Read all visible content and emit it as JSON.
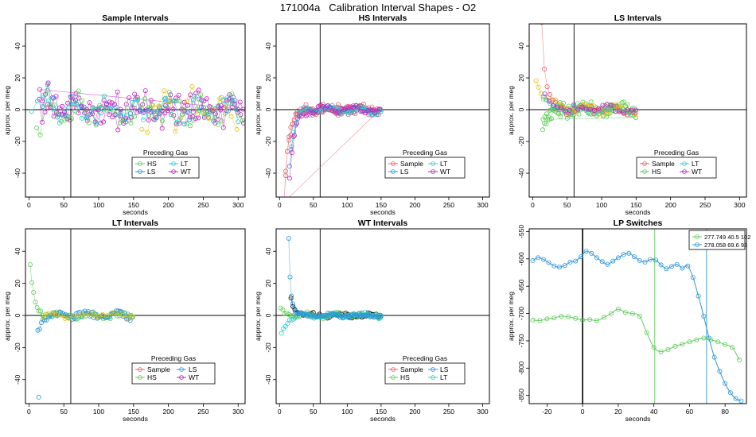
{
  "figure_title": "171004a   Calibration Interval Shapes - O2",
  "colors": {
    "Sample": "#e8606a",
    "HS": "#5fcc5a",
    "LS": "#2f96d8",
    "LT": "#2ad0c8",
    "WT": "#c020c0",
    "yellow": "#e8c010",
    "black": "#000000"
  },
  "chart_data": [
    {
      "type": "scatter",
      "panel": "sample",
      "title": "Sample Intervals",
      "xlabel": "seconds",
      "ylabel": "approx. per meg",
      "xlim": [
        -5,
        310
      ],
      "ylim": [
        -55,
        54
      ],
      "xticks": [
        0,
        50,
        100,
        150,
        200,
        250,
        300
      ],
      "yticks": [
        -40,
        -20,
        0,
        20,
        40
      ],
      "vline": 60,
      "hline": 0,
      "legend": {
        "title": "Preceding Gas",
        "entries": [
          {
            "label": "HS",
            "series": "HS"
          },
          {
            "label": "LT",
            "series": "LT"
          },
          {
            "label": "LS",
            "series": "LS"
          },
          {
            "label": "WT",
            "series": "WT"
          }
        ]
      },
      "series": [
        {
          "name": "WT",
          "gen": {
            "kind": "noisy",
            "x0": 14,
            "x1": 310,
            "step": 4,
            "amp": 12,
            "decay": [
              10,
              -60,
              18
            ],
            "copies": 2
          }
        },
        {
          "name": "HS",
          "gen": {
            "kind": "noisy",
            "x0": 10,
            "x1": 310,
            "step": 5,
            "amp": 11,
            "decay": [
              8,
              60,
              15
            ],
            "copies": 1
          }
        },
        {
          "name": "LS",
          "gen": {
            "kind": "noisy",
            "x0": 18,
            "x1": 300,
            "step": 7,
            "amp": 10,
            "decay": [
              10,
              -40,
              15
            ],
            "copies": 1
          }
        },
        {
          "name": "LT",
          "gen": {
            "kind": "noisy",
            "x0": 2,
            "x1": 300,
            "step": 8,
            "amp": 9,
            "decay": [
              6,
              36,
              18
            ],
            "copies": 1
          }
        },
        {
          "name": "yellow",
          "gen": {
            "kind": "noisy",
            "x0": 160,
            "x1": 300,
            "step": 8,
            "amp": 14,
            "decay": [
              0,
              0,
              1
            ],
            "copies": 1
          }
        }
      ]
    },
    {
      "type": "scatter",
      "panel": "hs",
      "title": "HS Intervals",
      "xlabel": "seconds",
      "ylabel": "approx. per meg",
      "xlim": [
        -5,
        310
      ],
      "ylim": [
        -55,
        54
      ],
      "xticks": [
        0,
        50,
        100,
        150,
        200,
        250,
        300
      ],
      "yticks": [
        -40,
        -20,
        0,
        20,
        40
      ],
      "vline": 60,
      "hline": 0,
      "legend": {
        "title": "Preceding Gas",
        "entries": [
          {
            "label": "Sample",
            "series": "Sample"
          },
          {
            "label": "LT",
            "series": "LT"
          },
          {
            "label": "LS",
            "series": "LS"
          },
          {
            "label": "WT",
            "series": "WT"
          }
        ]
      },
      "series": [
        {
          "name": "Sample",
          "gen": {
            "kind": "noisy",
            "x0": 6,
            "x1": 150,
            "step": 2.5,
            "amp": 3.5,
            "decay": [
              -60,
              0,
              7
            ],
            "copies": 2
          }
        },
        {
          "name": "LS",
          "gen": {
            "kind": "noisy",
            "x0": 14,
            "x1": 150,
            "step": 3,
            "amp": 3,
            "decay": [
              -40,
              0,
              7
            ],
            "copies": 1
          }
        },
        {
          "name": "LT",
          "gen": {
            "kind": "noisy",
            "x0": 16,
            "x1": 150,
            "step": 4,
            "amp": 3,
            "decay": [
              -30,
              0,
              7
            ],
            "copies": 1
          }
        },
        {
          "name": "WT",
          "gen": {
            "kind": "noisy",
            "x0": 14,
            "x1": 150,
            "step": 3.5,
            "amp": 3,
            "decay": [
              -50,
              0,
              7
            ],
            "copies": 1
          }
        }
      ]
    },
    {
      "type": "scatter",
      "panel": "ls",
      "title": "LS Intervals",
      "xlabel": "seconds",
      "ylabel": "approx. per meg",
      "xlim": [
        -5,
        310
      ],
      "ylim": [
        -55,
        54
      ],
      "xticks": [
        0,
        50,
        100,
        150,
        200,
        250,
        300
      ],
      "yticks": [
        -40,
        -20,
        0,
        20,
        40
      ],
      "vline": 60,
      "hline": 0,
      "legend": {
        "title": "Preceding Gas",
        "entries": [
          {
            "label": "Sample",
            "series": "Sample"
          },
          {
            "label": "LT",
            "series": "LT"
          },
          {
            "label": "HS",
            "series": "HS"
          },
          {
            "label": "WT",
            "series": "WT"
          }
        ]
      },
      "series": [
        {
          "name": "HS",
          "gen": {
            "kind": "noisy",
            "x0": 14,
            "x1": 150,
            "step": 2.5,
            "amp": 5,
            "decay": [
              -10,
              0,
              10
            ],
            "copies": 2
          }
        },
        {
          "name": "yellow",
          "gen": {
            "kind": "noisy",
            "x0": 4,
            "x1": 150,
            "step": 3.5,
            "amp": 3.5,
            "decay": [
              22,
              0,
              14
            ],
            "copies": 1
          }
        },
        {
          "name": "Sample",
          "gen": {
            "kind": "noisy",
            "x0": 12,
            "x1": 150,
            "step": 4,
            "amp": 3.5,
            "decay": [
              65,
              0,
              6
            ],
            "copies": 1
          }
        },
        {
          "name": "LT",
          "gen": {
            "kind": "noisy",
            "x0": 14,
            "x1": 150,
            "step": 5,
            "amp": 3,
            "decay": [
              8,
              0,
              10
            ],
            "copies": 1
          }
        },
        {
          "name": "WT",
          "gen": {
            "kind": "noisy",
            "x0": 16,
            "x1": 150,
            "step": 6,
            "amp": 3,
            "decay": [
              10,
              0,
              10
            ],
            "copies": 1
          }
        }
      ]
    },
    {
      "type": "scatter",
      "panel": "lt",
      "title": "LT Intervals",
      "xlabel": "seconds",
      "ylabel": "approx. per meg",
      "xlim": [
        -5,
        310
      ],
      "ylim": [
        -55,
        54
      ],
      "xticks": [
        0,
        50,
        100,
        150,
        200,
        250,
        300
      ],
      "yticks": [
        -40,
        -20,
        0,
        20,
        40
      ],
      "vline": 60,
      "hline": 0,
      "legend": {
        "title": "Preceding Gas",
        "entries": [
          {
            "label": "Sample",
            "series": "Sample"
          },
          {
            "label": "LS",
            "series": "LS"
          },
          {
            "label": "HS",
            "series": "HS"
          },
          {
            "label": "WT",
            "series": "WT"
          }
        ]
      },
      "series": [
        {
          "name": "HS",
          "gen": {
            "kind": "noisy",
            "x0": 1,
            "x1": 150,
            "step": 2.5,
            "amp": 2.5,
            "decay": [
              34,
              0,
              6
            ],
            "copies": 1
          }
        },
        {
          "name": "LS",
          "gen": {
            "kind": "noisy",
            "x0": 12,
            "x1": 150,
            "step": 2.5,
            "amp": 3,
            "decay": [
              -8,
              0,
              8
            ],
            "copies": 1
          }
        },
        {
          "name": "yellow",
          "gen": {
            "kind": "noisy",
            "x0": 20,
            "x1": 150,
            "step": 6,
            "amp": 2,
            "decay": [
              0,
              0,
              1
            ],
            "copies": 1
          }
        }
      ],
      "extra_points": [
        {
          "series": "LS",
          "x": 14,
          "y": -51
        }
      ]
    },
    {
      "type": "scatter",
      "panel": "wt",
      "title": "WT Intervals",
      "xlabel": "seconds",
      "ylabel": "approx. per meg",
      "xlim": [
        -5,
        310
      ],
      "ylim": [
        -55,
        54
      ],
      "xticks": [
        0,
        50,
        100,
        150,
        200,
        250,
        300
      ],
      "yticks": [
        -40,
        -20,
        0,
        20,
        40
      ],
      "vline": 60,
      "hline": 0,
      "legend": {
        "title": "Preceding Gas",
        "entries": [
          {
            "label": "Sample",
            "series": "Sample"
          },
          {
            "label": "LS",
            "series": "LS"
          },
          {
            "label": "HS",
            "series": "HS"
          },
          {
            "label": "LT",
            "series": "LT"
          }
        ]
      },
      "series": [
        {
          "name": "black",
          "gen": {
            "kind": "noisy",
            "x0": 16,
            "x1": 150,
            "step": 3,
            "amp": 1.8,
            "decay": [
              12,
              0,
              8
            ],
            "copies": 1
          }
        },
        {
          "name": "HS",
          "gen": {
            "kind": "noisy",
            "x0": 1,
            "x1": 150,
            "step": 3,
            "amp": 2,
            "decay": [
              4,
              0,
              10
            ],
            "copies": 1
          }
        },
        {
          "name": "LT",
          "gen": {
            "kind": "noisy",
            "x0": 2,
            "x1": 150,
            "step": 3,
            "amp": 2,
            "decay": [
              -12,
              0,
              8
            ],
            "copies": 1
          }
        },
        {
          "name": "LS",
          "gen": {
            "kind": "noisy",
            "x0": 13,
            "x1": 150,
            "step": 2,
            "amp": 1.6,
            "decay": [
              60,
              0,
              3
            ],
            "copies": 1
          }
        }
      ]
    },
    {
      "type": "scatter",
      "panel": "lp",
      "title": "LP Switches",
      "xlabel": "seconds",
      "ylabel": "approx. per meg",
      "xlim": [
        -30,
        92
      ],
      "ylim": [
        -865,
        -545
      ],
      "xticks": [
        -20,
        0,
        20,
        40,
        60,
        80
      ],
      "yticks": [
        -850,
        -800,
        -750,
        -700,
        -650,
        -600,
        -550
      ],
      "vline": 0,
      "legend": {
        "title": "",
        "position": "top-right",
        "entries": [
          {
            "label": "277.749 40.5 102",
            "series": "HS"
          },
          {
            "label": "278.058 69.6 93",
            "series": "LS"
          }
        ]
      },
      "series": [
        {
          "name": "LS",
          "x": [
            -28,
            -25,
            -22,
            -19,
            -16,
            -13,
            -10,
            -7,
            -4,
            -1,
            2,
            5,
            8,
            11,
            14,
            17,
            20,
            23,
            26,
            29,
            32,
            35,
            38,
            41,
            44,
            47,
            50,
            53,
            56,
            59,
            62,
            65,
            68,
            71,
            74,
            77,
            80,
            83,
            86,
            89
          ],
          "y": [
            -603,
            -598,
            -601,
            -607,
            -613,
            -615,
            -612,
            -606,
            -604,
            -596,
            -586,
            -590,
            -598,
            -605,
            -610,
            -604,
            -598,
            -592,
            -590,
            -596,
            -603,
            -606,
            -601,
            -602,
            -611,
            -618,
            -614,
            -610,
            -617,
            -613,
            -634,
            -668,
            -705,
            -745,
            -780,
            -806,
            -828,
            -845,
            -856,
            -860
          ]
        },
        {
          "name": "HS",
          "x": [
            -28,
            -24,
            -20,
            -16,
            -12,
            -8,
            -4,
            0,
            4,
            8,
            12,
            16,
            20,
            24,
            28,
            32,
            36,
            40,
            44,
            48,
            52,
            56,
            60,
            64,
            68,
            72,
            76,
            80,
            84,
            88
          ],
          "y": [
            -712,
            -713,
            -710,
            -708,
            -705,
            -706,
            -709,
            -712,
            -711,
            -713,
            -707,
            -700,
            -692,
            -698,
            -700,
            -705,
            -735,
            -762,
            -770,
            -766,
            -760,
            -756,
            -752,
            -748,
            -745,
            -748,
            -752,
            -757,
            -762,
            -785
          ]
        }
      ],
      "vlines_colored": [
        {
          "x": 40.5,
          "series": "HS"
        },
        {
          "x": 69.6,
          "series": "LS"
        }
      ]
    }
  ]
}
